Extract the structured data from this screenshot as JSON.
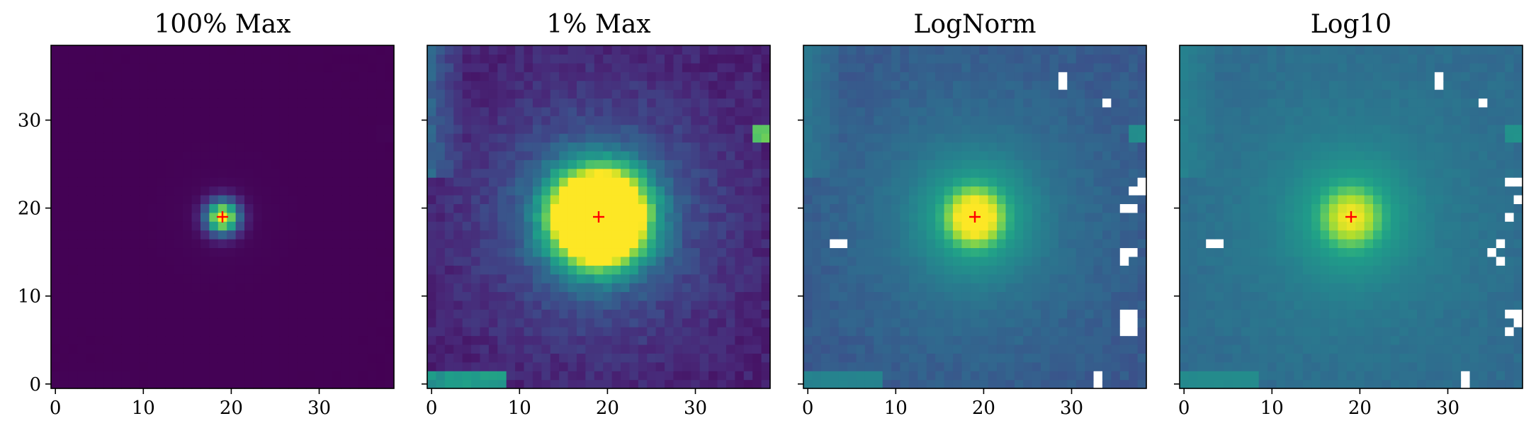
{
  "chart_data": [
    {
      "type": "heatmap",
      "title": "100% Max",
      "grid_size": 39,
      "xlim": [
        -0.5,
        38.5
      ],
      "ylim": [
        -0.5,
        38.5
      ],
      "xticks": [
        0,
        10,
        20,
        30
      ],
      "yticks": [
        0,
        10,
        20,
        30
      ],
      "show_ytick_labels": true,
      "colormap": "viridis",
      "normalization": "linear, vmax = 100% of max",
      "marker": {
        "symbol": "+",
        "color": "#ff0000",
        "x": 19,
        "y": 19
      }
    },
    {
      "type": "heatmap",
      "title": "1% Max",
      "grid_size": 39,
      "xlim": [
        -0.5,
        38.5
      ],
      "ylim": [
        -0.5,
        38.5
      ],
      "xticks": [
        0,
        10,
        20,
        30
      ],
      "yticks": [
        0,
        10,
        20,
        30
      ],
      "show_ytick_labels": false,
      "colormap": "viridis",
      "normalization": "linear, vmax = 1% of max",
      "marker": {
        "symbol": "+",
        "color": "#ff0000",
        "x": 19,
        "y": 19
      }
    },
    {
      "type": "heatmap",
      "title": "LogNorm",
      "grid_size": 39,
      "xlim": [
        -0.5,
        38.5
      ],
      "ylim": [
        -0.5,
        38.5
      ],
      "xticks": [
        0,
        10,
        20,
        30
      ],
      "yticks": [
        0,
        10,
        20,
        30
      ],
      "show_ytick_labels": false,
      "colormap": "viridis",
      "normalization": "log",
      "masked_color": "#ffffff",
      "marker": {
        "symbol": "+",
        "color": "#ff0000",
        "x": 19,
        "y": 19
      }
    },
    {
      "type": "heatmap",
      "title": "Log10",
      "grid_size": 39,
      "xlim": [
        -0.5,
        38.5
      ],
      "ylim": [
        -0.5,
        38.5
      ],
      "xticks": [
        0,
        10,
        20,
        30
      ],
      "yticks": [
        0,
        10,
        20,
        30
      ],
      "show_ytick_labels": false,
      "colormap": "viridis",
      "normalization": "log10 of data",
      "masked_color": "#ffffff",
      "marker": {
        "symbol": "+",
        "color": "#ff0000",
        "x": 19,
        "y": 19
      }
    }
  ]
}
